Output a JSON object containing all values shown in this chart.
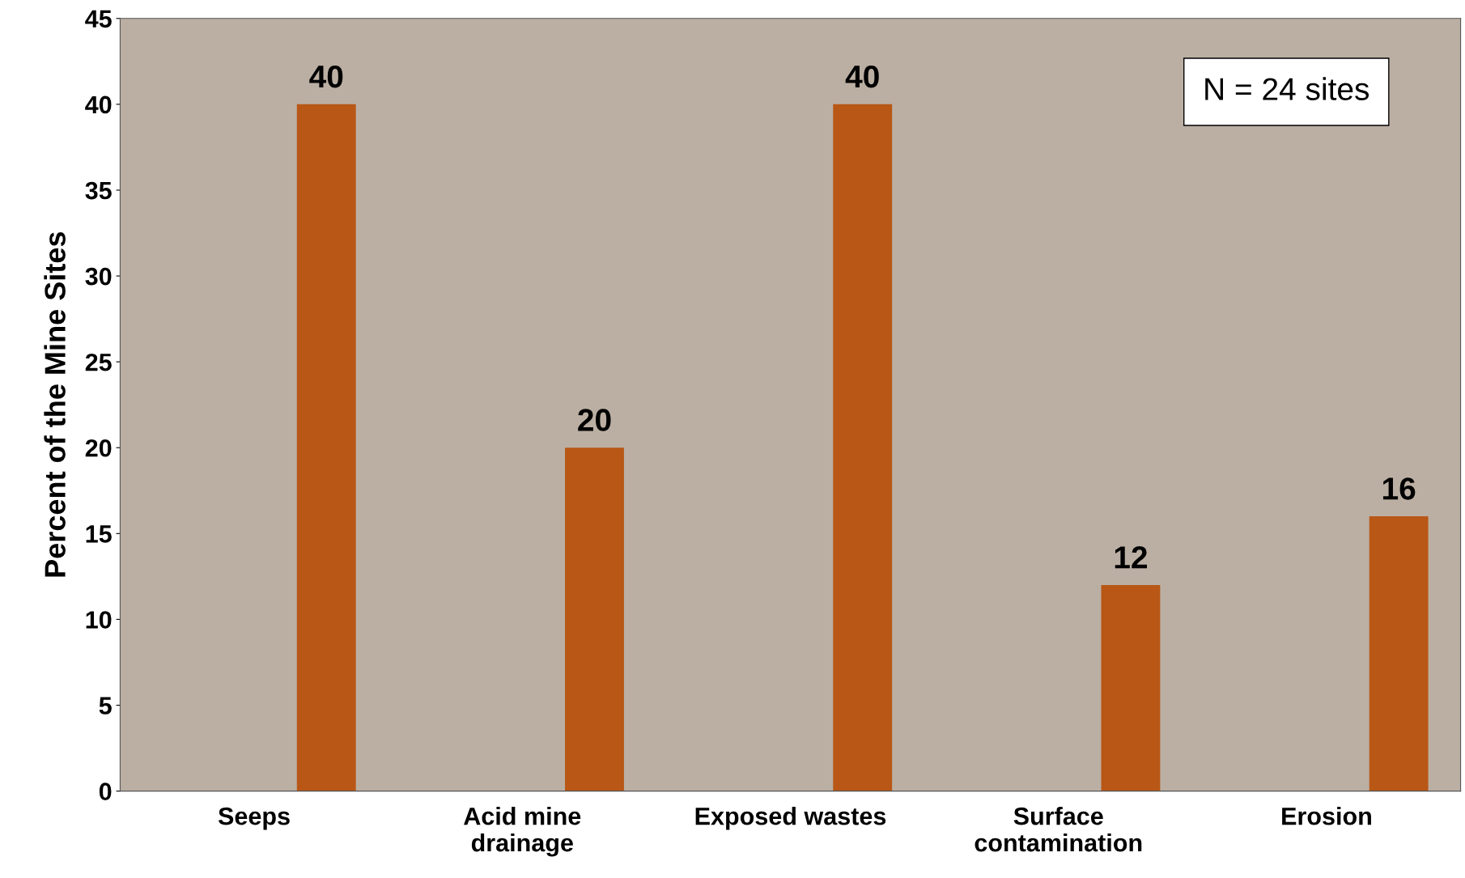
{
  "chart_data": {
    "type": "bar",
    "ylabel": "Percent of the Mine Sites",
    "categories": [
      "Seeps",
      "Acid mine\ndrainage",
      "Exposed wastes",
      "Surface\ncontamination",
      "Erosion"
    ],
    "values": [
      40,
      20,
      40,
      12,
      16
    ],
    "color": "#b85716",
    "ylim": [
      0,
      45
    ],
    "yticks": [
      0,
      5,
      10,
      15,
      20,
      25,
      30,
      35,
      40,
      45
    ],
    "grid": false,
    "data_labels": true,
    "legend": false,
    "annotations": [
      "N = 24 sites"
    ]
  }
}
